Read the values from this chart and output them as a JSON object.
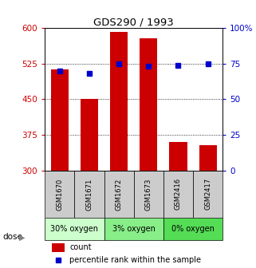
{
  "title": "GDS290 / 1993",
  "samples": [
    "GSM1670",
    "GSM1671",
    "GSM1672",
    "GSM1673",
    "GSM2416",
    "GSM2417"
  ],
  "counts": [
    513,
    450,
    592,
    578,
    360,
    353
  ],
  "percentiles": [
    70,
    68,
    75,
    73,
    74,
    75
  ],
  "ylim_left": [
    300,
    600
  ],
  "ylim_right": [
    0,
    100
  ],
  "yticks_left": [
    300,
    375,
    450,
    525,
    600
  ],
  "yticks_right": [
    0,
    25,
    50,
    75,
    100
  ],
  "bar_color": "#cc0000",
  "dot_color": "#0000cc",
  "groups": [
    {
      "label": "30% oxygen",
      "indices": [
        0,
        1
      ],
      "color": "#ccffcc"
    },
    {
      "label": "3% oxygen",
      "indices": [
        2,
        3
      ],
      "color": "#88ee88"
    },
    {
      "label": "0% oxygen",
      "indices": [
        4,
        5
      ],
      "color": "#55dd55"
    }
  ],
  "dose_label": "dose",
  "legend_count_label": "count",
  "legend_percentile_label": "percentile rank within the sample",
  "tick_label_color_left": "#cc0000",
  "tick_label_color_right": "#0000cc",
  "sample_box_color": "#cccccc"
}
